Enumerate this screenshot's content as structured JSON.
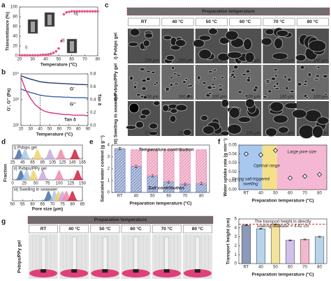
{
  "figure": {
    "panel_labels": [
      "a",
      "b",
      "c",
      "d",
      "e",
      "f",
      "g"
    ]
  },
  "chart_data": [
    {
      "type": "scatter",
      "xlabel": "Temperature (°C)",
      "ylabel": "Transmittance (%)",
      "x": [
        20,
        22,
        24,
        26,
        28,
        30,
        32,
        34,
        36,
        38,
        40,
        42,
        44,
        46,
        48,
        50,
        52,
        54,
        56,
        58,
        60,
        62,
        64,
        66,
        68,
        70,
        72,
        74,
        76,
        78,
        80
      ],
      "values": [
        1,
        1,
        1,
        1,
        1,
        1,
        1,
        1,
        1.5,
        2,
        2,
        3,
        4,
        6,
        9,
        15,
        30,
        85,
        89,
        90,
        91,
        91,
        91,
        91,
        91,
        91,
        91,
        91,
        91,
        91,
        91
      ],
      "color": "#e8508a",
      "xlim": [
        20,
        80
      ],
      "xticks": [
        20,
        30,
        40,
        50,
        60,
        70,
        80
      ],
      "ylim": [
        0,
        100
      ],
      "yticks": [
        0,
        20,
        40,
        60,
        80,
        100
      ],
      "annotations": [
        "i)",
        "ii)",
        "iii)"
      ]
    },
    {
      "type": "line",
      "xlabel": "Temperature (°C)",
      "ylabel": "G', G'' (Pa)",
      "y2label": "Tan δ",
      "ylog": true,
      "x": [
        20,
        25,
        30,
        35,
        40,
        45,
        50,
        55,
        60,
        65,
        70,
        75,
        80,
        85,
        90
      ],
      "series": [
        {
          "name": "G'",
          "color": "#1f3b73",
          "values": [
            8500,
            7200,
            6300,
            5600,
            5000,
            4700,
            4500,
            4400,
            4300,
            4200,
            4100,
            4000,
            3900,
            3850,
            3800
          ]
        },
        {
          "name": "G''",
          "color": "#3a5fb0",
          "values": [
            2600,
            2200,
            1900,
            1700,
            1500,
            1400,
            1350,
            1300,
            1300,
            1250,
            1250,
            1200,
            1200,
            1200,
            1150
          ]
        },
        {
          "name": "Tan δ",
          "color": "#d6337a",
          "axis": "y2",
          "values": [
            0.75,
            0.55,
            0.42,
            0.32,
            0.26,
            0.22,
            0.2,
            0.19,
            0.18,
            0.17,
            0.17,
            0.16,
            0.16,
            0.16,
            0.15
          ]
        }
      ],
      "xlim": [
        20,
        90
      ],
      "xticks": [
        20,
        30,
        40,
        50,
        60,
        70,
        80,
        90
      ],
      "ylim": [
        100,
        10000
      ],
      "yticks": [
        {
          "value": 100,
          "label": "10²"
        },
        {
          "value": 1000,
          "label": "10³"
        },
        {
          "value": 10000,
          "label": "10⁴"
        }
      ],
      "y2lim": [
        0,
        0.8
      ],
      "y2ticks": [
        {
          "value": 0,
          "label": "0.0"
        },
        {
          "value": 0.2,
          "label": "0.2"
        },
        {
          "value": 0.4,
          "label": "0.4"
        },
        {
          "value": 0.6,
          "label": "0.6"
        },
        {
          "value": 0.8,
          "label": "0.8"
        }
      ],
      "vline": 40
    },
    {
      "type": "distribution",
      "xlabel": "Pore size (μm)",
      "ylabel": "Fraction",
      "colors": [
        "#4a6fa5",
        "#a8c8e8",
        "#f0d070",
        "#c8a8e0",
        "#f08aa8",
        "#d02040"
      ],
      "rows": [
        {
          "label": "i) Pvbips gel",
          "xlim": [
            25,
            165
          ],
          "xticks": [
            25,
            45,
            65,
            85,
            105,
            125,
            145,
            165
          ],
          "peaks": [
            38,
            50,
            75,
            100,
            122,
            150
          ]
        },
        {
          "label": "ii) Pvbips/PPy gel",
          "xlim": [
            0,
            150
          ],
          "xticks": [
            0,
            25,
            50,
            75,
            100,
            125,
            150
          ],
          "peaks": [
            18,
            30,
            45,
            65,
            100,
            140
          ]
        },
        {
          "label": "iii) Swelling in seawater",
          "xlim": [
            50,
            85
          ],
          "xticks": [
            50,
            55,
            60,
            65,
            70,
            75,
            80,
            85
          ],
          "peaks": [
            68,
            71,
            73,
            75,
            77,
            80
          ]
        }
      ]
    },
    {
      "type": "stacked_bar",
      "xlabel": "Preparation temperature (°C)",
      "ylabel": "Saturated water content (g g⁻¹)",
      "categories": [
        "RT",
        "40",
        "50",
        "60",
        "70",
        "80"
      ],
      "series": [
        {
          "name": "Salt contribution",
          "color": "#3b5ba5",
          "values": [
            3.7,
            2.2,
            1.4,
            0.9,
            0.7,
            0.75
          ],
          "errors": [
            0.1,
            0.1,
            0.1,
            0.1,
            0.1,
            0.1
          ]
        },
        {
          "name": "Temperature contribution",
          "color": "#e06090",
          "values": [
            0,
            1.4,
            2.2,
            2.7,
            2.9,
            2.85
          ]
        }
      ],
      "ylim": [
        0,
        4
      ],
      "yticks": [
        0,
        1,
        2,
        3,
        4
      ]
    },
    {
      "type": "category_scatter",
      "xlabel": "Preparation temperature (°C)",
      "ylabel": "Water uptake rate (g min⁻¹)",
      "categories": [
        "RT",
        "40",
        "50",
        "60",
        "70",
        "80"
      ],
      "values": [
        0.04,
        0.039,
        0.044,
        0.013,
        0.015,
        0.017
      ],
      "color": "#111111",
      "region_colors": [
        "#a8c8f0",
        "#f5e08a",
        "#f5b8d4"
      ],
      "ylim": [
        0,
        0.05
      ],
      "yticks": [
        {
          "value": 0,
          "label": "0.00"
        },
        0.01,
        0.02,
        0.03,
        0.04,
        0.05
      ],
      "annotations": [
        "Optimal range",
        "Large pore size",
        "Strong salt-triggered",
        "swelling"
      ]
    },
    {
      "type": "bar",
      "xlabel": "Preparation temperature (°C)",
      "ylabel": "Transport height (cm)",
      "categories": [
        "RT",
        "40",
        "50",
        "60",
        "70",
        "80"
      ],
      "values": [
        4.3,
        3.9,
        4.4,
        2.6,
        2.7,
        3.0
      ],
      "errors": [
        0.05,
        0.05,
        0.05,
        0.05,
        0.05,
        0.05
      ],
      "colors": [
        "#8a9ab8",
        "#b8d4ec",
        "#f2e29a",
        "#d0c0ea",
        "#f4b8cc",
        "#b8d4ec"
      ],
      "ylim": [
        0,
        5
      ],
      "yticks": [
        0,
        1,
        2,
        3,
        4,
        5
      ],
      "ref_line": 4.42,
      "annotations": [
        "The transport height in directly",
        "soaking seawater = 4.42 cm"
      ]
    }
  ],
  "image_grids": [
    {
      "title": "Preparation temperature",
      "columns": [
        "RT",
        "40 °C",
        "50 °C",
        "60 °C",
        "70 °C",
        "80 °C"
      ],
      "rows": [
        "i) Pvbips gel",
        "ii) Pvbips/PPy gel",
        "iii) Swelling in seawater"
      ],
      "scale_bar": "100 μm"
    },
    {
      "title": "Preparation temperature",
      "columns": [
        "RT",
        "40 °C",
        "50 °C",
        "60 °C",
        "70 °C",
        "80 °C"
      ],
      "rows": [
        "Pvbips/PPy gel"
      ]
    }
  ]
}
